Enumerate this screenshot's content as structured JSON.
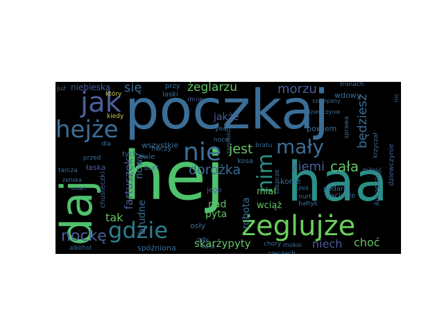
{
  "wordcloud": {
    "background": "#000000",
    "words": [
      {
        "id": "poczkaj",
        "text": "poczkaj",
        "color": "#3b6e97"
      },
      {
        "id": "hej",
        "text": "hej",
        "color": "#4fc26d"
      },
      {
        "id": "haa",
        "text": "haa",
        "color": "#2a9087"
      },
      {
        "id": "daj",
        "text": "daj",
        "color": "#4fc26d"
      },
      {
        "id": "zeglujze",
        "text": "żeglujże",
        "color": "#68cf5a"
      },
      {
        "id": "gdzie",
        "text": "gdzie",
        "color": "#2e7f8e"
      },
      {
        "id": "nie",
        "text": "nie",
        "color": "#3b6e97"
      },
      {
        "id": "jak",
        "text": "jak",
        "color": "#4a5e9a"
      },
      {
        "id": "hejze",
        "text": "hejże",
        "color": "#3b6e97"
      },
      {
        "id": "maly",
        "text": "mały",
        "color": "#3b6e97"
      },
      {
        "id": "nim",
        "text": "nim",
        "color": "#2a9087"
      },
      {
        "id": "nocke",
        "text": "nockę",
        "color": "#4a5e9a"
      },
      {
        "id": "zeglarzu",
        "text": "żeglarzu",
        "color": "#66c466"
      },
      {
        "id": "morzu",
        "text": "morzu",
        "color": "#4a5e9a"
      },
      {
        "id": "sie",
        "text": "się",
        "color": "#3b6e97"
      },
      {
        "id": "jest",
        "text": "jest",
        "color": "#66c466"
      },
      {
        "id": "dorozka",
        "text": "dorożka",
        "color": "#3b6e97"
      },
      {
        "id": "ziemi",
        "text": "ziemi",
        "color": "#4a5e9a"
      },
      {
        "id": "cala",
        "text": "cała",
        "color": "#66c466"
      },
      {
        "id": "bedziesz",
        "text": "będziesz",
        "color": "#3b6e97"
      },
      {
        "id": "skarzypyty",
        "text": "skarżypyty",
        "color": "#66c466"
      },
      {
        "id": "niebieska",
        "text": "niebieska",
        "color": "#4a5e9a"
      },
      {
        "id": "fartuszek",
        "text": "fartuszek",
        "color": "#4a5e9a"
      },
      {
        "id": "nowy",
        "text": "nowy",
        "color": "#3b6e97"
      },
      {
        "id": "tak",
        "text": "tak",
        "color": "#66c466"
      },
      {
        "id": "brudne",
        "text": "brudne",
        "color": "#3b6e97"
      },
      {
        "id": "nad",
        "text": "nad",
        "color": "#66c466"
      },
      {
        "id": "pyta",
        "text": "pyta",
        "color": "#66c466"
      },
      {
        "id": "robota",
        "text": "robota",
        "color": "#3b6e97"
      },
      {
        "id": "wciaz",
        "text": "wciąż",
        "color": "#66c466"
      },
      {
        "id": "mial",
        "text": "miał",
        "color": "#66c466"
      },
      {
        "id": "niech",
        "text": "niech",
        "color": "#4a5e9a"
      },
      {
        "id": "choc",
        "text": "choć",
        "color": "#66c466"
      },
      {
        "id": "spozniona",
        "text": "spóźniona",
        "color": "#3b6e97"
      },
      {
        "id": "wszystkie",
        "text": "wszystkie",
        "color": "#3b6e97"
      },
      {
        "id": "jakze",
        "text": "jakże",
        "color": "#4a5e9a"
      },
      {
        "id": "przy",
        "text": "przy",
        "color": "#3b6e97"
      },
      {
        "id": "laski",
        "text": "laski",
        "color": "#3b6e97"
      },
      {
        "id": "konie",
        "text": "konie",
        "color": "#3b6e97"
      },
      {
        "id": "powiem",
        "text": "powiem",
        "color": "#3b6e97"
      },
      {
        "id": "podarki",
        "text": "podarki",
        "color": "#3b6e97"
      },
      {
        "id": "pacierze",
        "text": "pacierze",
        "color": "#3b6e97"
      },
      {
        "id": "wdowy",
        "text": "wdowy",
        "color": "#3b6e97"
      },
      {
        "id": "bezdenny",
        "text": "bezdenny",
        "color": "#3b6e97"
      },
      {
        "id": "dziewczynie",
        "text": "dziewczynie",
        "color": "#4a5e9a"
      },
      {
        "id": "laska",
        "text": "łaska",
        "color": "#4a5e9a"
      },
      {
        "id": "chusteczki",
        "text": "chusteczki",
        "color": "#4a5e9a"
      },
      {
        "id": "jego",
        "text": "jego",
        "color": "#4a5e9a"
      },
      {
        "id": "kosa",
        "text": "kosa",
        "color": "#3b6e97"
      },
      {
        "id": "osly",
        "text": "osły",
        "color": "#3b6e97"
      },
      {
        "id": "burt",
        "text": "burt",
        "color": "#3b6e97"
      },
      {
        "id": "huczy",
        "text": "huczy",
        "color": "#3b6e97"
      },
      {
        "id": "dwie",
        "text": "dwie",
        "color": "#3b6e97"
      },
      {
        "id": "tych",
        "text": "tych",
        "color": "#3b6e97"
      },
      {
        "id": "kiedy",
        "text": "kiedy",
        "color": "#cccc55"
      },
      {
        "id": "ktory",
        "text": "który",
        "color": "#cccc55"
      },
      {
        "id": "alkohol",
        "text": "alkohol",
        "color": "#3b6e97"
      },
      {
        "id": "mnie",
        "text": "mnie",
        "color": "#4a5e9a"
      },
      {
        "id": "yeah",
        "text": "yeah",
        "color": "#3b6e97"
      },
      {
        "id": "noce",
        "text": "noce",
        "color": "#3b6e97"
      },
      {
        "id": "chory",
        "text": "chory",
        "color": "#3b6e97"
      },
      {
        "id": "mokoi",
        "text": "mokoi",
        "color": "#3b6e97"
      },
      {
        "id": "nic",
        "text": "nic",
        "color": "#3b6e97"
      },
      {
        "id": "juz",
        "text": "już",
        "color": "#3b6e97"
      },
      {
        "id": "sprawa",
        "text": "sprawa",
        "color": "#3b6e97"
      },
      {
        "id": "szepcze",
        "text": "szepcze",
        "color": "#3b6e97"
      },
      {
        "id": "gdy",
        "text": "gdy",
        "color": "#3b6e97"
      },
      {
        "id": "katu",
        "text": "katu",
        "color": "#3b6e97"
      },
      {
        "id": "przed",
        "text": "przed",
        "color": "#3b6e97"
      },
      {
        "id": "dla",
        "text": "dla",
        "color": "#3b6e97"
      },
      {
        "id": "tarcza",
        "text": "tarcza",
        "color": "#3b6e97"
      },
      {
        "id": "mi",
        "text": "mi",
        "color": "#3b6e97"
      },
      {
        "id": "zenska",
        "text": "żeńska",
        "color": "#3b6e97"
      },
      {
        "id": "usiarl",
        "text": "usiarl",
        "color": "#3b6e97"
      },
      {
        "id": "krzyczal",
        "text": "krzyczał",
        "color": "#3b6e97"
      },
      {
        "id": "milosc",
        "text": "miłość",
        "color": "#3b6e97"
      },
      {
        "id": "rzeczach",
        "text": "rzeczach",
        "color": "#3b6e97"
      },
      {
        "id": "nurt",
        "text": "nurt",
        "color": "#3b6e97"
      },
      {
        "id": "baltyk",
        "text": "bałtyk",
        "color": "#3b6e97"
      },
      {
        "id": "tronach",
        "text": "tronach",
        "color": "#3b6e97"
      },
      {
        "id": "szampany",
        "text": "szampany",
        "color": "#3b6e97"
      },
      {
        "id": "dzierwczynie",
        "text": "dziewczynie",
        "color": "#3b6e97"
      },
      {
        "id": "brat",
        "text": "bratu",
        "color": "#3b6e97"
      },
      {
        "id": "zes",
        "text": "żeś",
        "color": "#3b6e97"
      },
      {
        "id": "zamilosc",
        "text": "zamiłość",
        "color": "#3b6e97"
      }
    ]
  }
}
